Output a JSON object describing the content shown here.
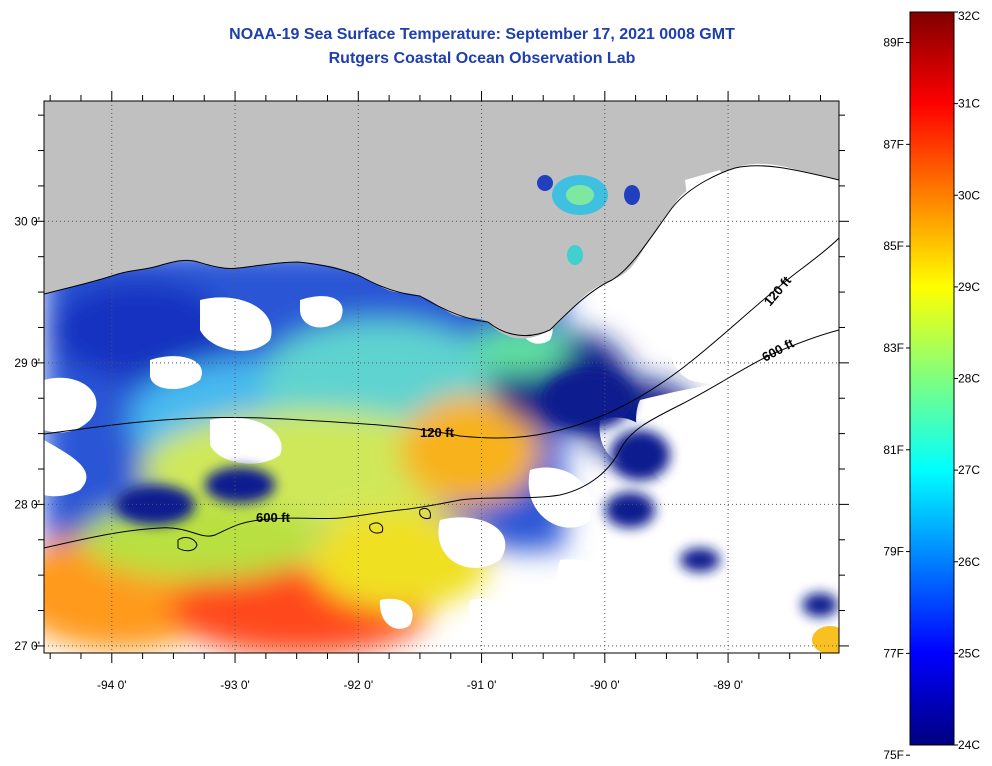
{
  "title": {
    "line1": "NOAA-19 Sea Surface Temperature:  September 17, 2021 0008 GMT",
    "line2": "Rutgers Coastal Ocean Observation Lab"
  },
  "map": {
    "lon_range": [
      -94.55,
      -88.1
    ],
    "lat_range": [
      26.95,
      30.85
    ],
    "lat_ticks": [
      {
        "value": 30,
        "label": "30 0'"
      },
      {
        "value": 29,
        "label": "29 0'"
      },
      {
        "value": 28,
        "label": "28 0'"
      },
      {
        "value": 27,
        "label": "27 0'"
      }
    ],
    "lon_ticks": [
      {
        "value": -94,
        "label": "-94 0'"
      },
      {
        "value": -93,
        "label": "-93 0'"
      },
      {
        "value": -92,
        "label": "-92 0'"
      },
      {
        "value": -91,
        "label": "-91 0'"
      },
      {
        "value": -90,
        "label": "-90 0'"
      },
      {
        "value": -89,
        "label": "-89 0'"
      }
    ],
    "grid": "dotted",
    "land_color": "#c0c0c0",
    "cloud_color": "#ffffff",
    "contour_labels": [
      {
        "label": "120 ft"
      },
      {
        "label": "600 ft"
      },
      {
        "label": "120 ft"
      },
      {
        "label": "600 ft"
      }
    ]
  },
  "colorbar": {
    "celsius_range": [
      24,
      32
    ],
    "celsius_labels": [
      "32C",
      "31C",
      "30C",
      "29C",
      "28C",
      "27C",
      "26C",
      "25C",
      "24C"
    ],
    "fahrenheit_labels": [
      {
        "value": 89,
        "label": "89F"
      },
      {
        "value": 87,
        "label": "87F"
      },
      {
        "value": 85,
        "label": "85F"
      },
      {
        "value": 83,
        "label": "83F"
      },
      {
        "value": 81,
        "label": "81F"
      },
      {
        "value": 79,
        "label": "79F"
      },
      {
        "value": 77,
        "label": "77F"
      },
      {
        "value": 75,
        "label": "75F"
      }
    ],
    "colors": [
      "#00007f",
      "#0000ff",
      "#007fff",
      "#00ffff",
      "#7fff7f",
      "#ffff00",
      "#ff7f00",
      "#ff0000",
      "#7f0000"
    ]
  }
}
